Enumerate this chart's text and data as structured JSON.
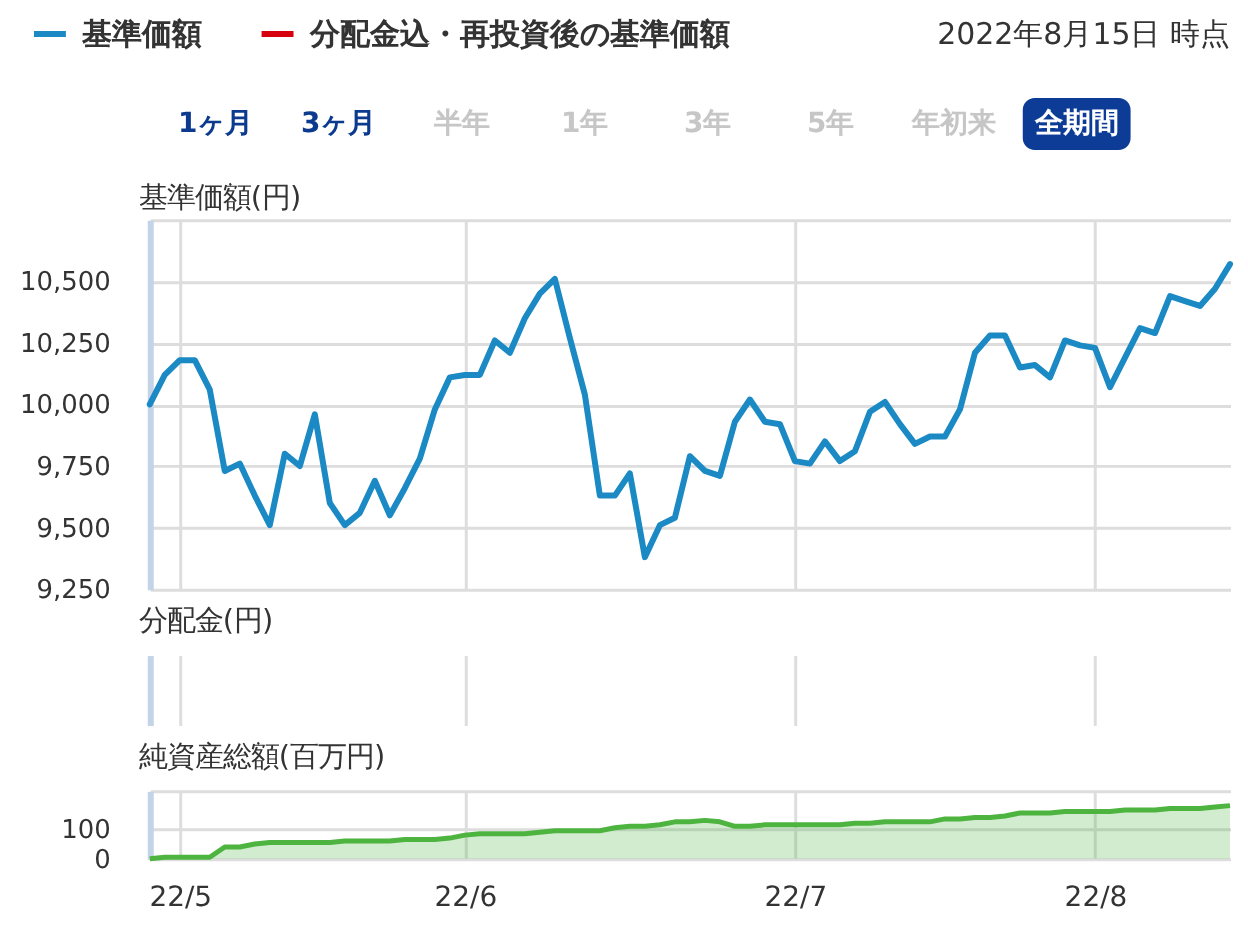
{
  "chart_data": [
    {
      "type": "line",
      "ylabel": "基準価額(円)",
      "categories": [
        null,
        null,
        null,
        null,
        null,
        null,
        null,
        null,
        null,
        null,
        null,
        null,
        null,
        null,
        null,
        null,
        null,
        null,
        null,
        null,
        null,
        null,
        null,
        null,
        null,
        null,
        null,
        null,
        null,
        null,
        null,
        null,
        null,
        null,
        null,
        null,
        null,
        null,
        null,
        null,
        null,
        null,
        null,
        null,
        null,
        null,
        null,
        null,
        null,
        null,
        null,
        null,
        null,
        null,
        null,
        null,
        null,
        null,
        null,
        null,
        null,
        null,
        null,
        null,
        null,
        null,
        null,
        null,
        null,
        null,
        null,
        null,
        null
      ],
      "series": [
        {
          "name": "基準価額",
          "color": "#1a89c4",
          "values": [
            10000,
            10120,
            10180,
            10180,
            10060,
            9730,
            9760,
            9630,
            9510,
            9800,
            9750,
            9960,
            9600,
            9510,
            9560,
            9690,
            9550,
            9660,
            9780,
            9980,
            10110,
            10120,
            10120,
            10260,
            10210,
            10350,
            10450,
            10510,
            10270,
            10040,
            9630,
            9630,
            9720,
            9380,
            9510,
            9540,
            9790,
            9730,
            9710,
            9930,
            10020,
            9930,
            9920,
            9770,
            9760,
            9850,
            9770,
            9810,
            9970,
            10010,
            9920,
            9840,
            9870,
            9870,
            9980,
            10210,
            10280,
            10280,
            10150,
            10160,
            10110,
            10260,
            10240,
            10230,
            10070,
            10190,
            10310,
            10290,
            10440,
            10420,
            10400,
            10470,
            10570
          ]
        },
        {
          "name": "分配金込・再投資後の基準価額",
          "color": "#d7000f",
          "values": [
            null,
            null,
            null,
            null,
            null,
            null,
            null,
            null,
            null,
            null,
            null,
            null,
            null,
            null,
            null,
            null,
            null,
            null,
            null,
            null,
            null,
            null,
            null,
            null,
            null,
            null,
            null,
            null,
            null,
            null,
            null,
            null,
            null,
            null,
            null,
            null,
            null,
            null,
            null,
            null,
            null,
            null,
            null,
            null,
            null,
            null,
            null,
            null,
            null,
            null,
            null,
            null,
            null,
            null,
            null,
            null,
            null,
            null,
            null,
            null,
            null,
            null,
            null,
            null,
            null,
            null,
            null,
            null,
            null,
            null,
            null,
            null,
            null
          ]
        }
      ],
      "ylim": [
        9250,
        10750
      ],
      "yticks": [
        {
          "value": 9250,
          "label": "9,250"
        },
        {
          "value": 9500,
          "label": "9,500"
        },
        {
          "value": 9750,
          "label": "9,750"
        },
        {
          "value": 10000,
          "label": "10,000"
        },
        {
          "value": 10250,
          "label": "10,250"
        },
        {
          "value": 10500,
          "label": "10,500"
        },
        {
          "value": 10750,
          "label": null
        }
      ],
      "grid": true,
      "legend": "top left",
      "annotations": [
        "2022年8月15日 時点",
        "1ヶ月",
        "3ヶ月",
        "半年",
        "1年",
        "3年",
        "5年",
        "年初来",
        "全期間"
      ]
    },
    {
      "type": "other",
      "ylabel": "分配金(円)"
    },
    {
      "type": "area",
      "ylabel": "純資産総額(百万円)",
      "categories": [
        null,
        null,
        "22/5",
        null,
        null,
        null,
        null,
        null,
        null,
        null,
        null,
        null,
        null,
        null,
        null,
        null,
        null,
        null,
        null,
        null,
        null,
        "22/6",
        null,
        null,
        null,
        null,
        null,
        null,
        null,
        null,
        null,
        null,
        null,
        null,
        null,
        null,
        null,
        null,
        null,
        null,
        null,
        null,
        null,
        "22/7",
        null,
        null,
        null,
        null,
        null,
        null,
        null,
        null,
        null,
        null,
        null,
        null,
        null,
        null,
        null,
        null,
        null,
        null,
        null,
        "22/8",
        null,
        null,
        null,
        null,
        null,
        null,
        null,
        null,
        null
      ],
      "series": [
        {
          "color": "#4cb43f",
          "values": [
            0,
            5,
            5,
            5,
            5,
            40,
            40,
            50,
            55,
            55,
            55,
            55,
            55,
            60,
            60,
            60,
            60,
            65,
            65,
            65,
            70,
            80,
            85,
            85,
            85,
            85,
            90,
            95,
            95,
            95,
            95,
            105,
            110,
            110,
            115,
            125,
            125,
            130,
            125,
            110,
            110,
            115,
            115,
            115,
            115,
            115,
            115,
            120,
            120,
            125,
            125,
            125,
            125,
            135,
            135,
            140,
            140,
            145,
            155,
            155,
            155,
            160,
            160,
            160,
            160,
            165,
            165,
            165,
            170,
            170,
            170,
            175,
            180
          ]
        }
      ],
      "ylim": [
        0,
        230
      ],
      "yticks": [
        0,
        100,
        {
          "value": 230,
          "label": null
        }
      ],
      "grid": true
    }
  ]
}
